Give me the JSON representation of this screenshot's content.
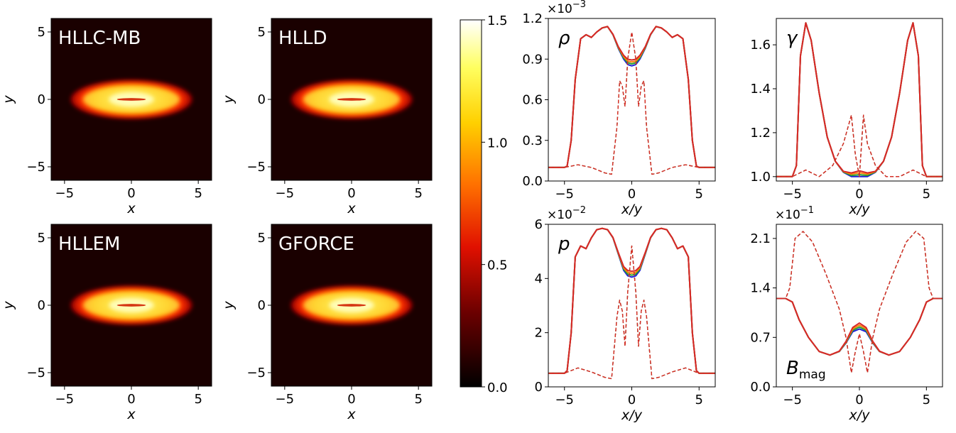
{
  "heatmaps": [
    {
      "title": "HLLC-MB"
    },
    {
      "title": "HLLD"
    },
    {
      "title": "HLLEM"
    },
    {
      "title": "GFORCE"
    }
  ],
  "heatmap_axes": {
    "xlabel": "x",
    "ylabel": "y",
    "xticks": [
      "−5",
      "0",
      "5"
    ],
    "yticks": [
      "5",
      "0",
      "−5"
    ]
  },
  "colorbar": {
    "ticks": [
      "1.5",
      "1.0",
      "0.5",
      "0.0"
    ],
    "range": [
      0,
      1.5
    ],
    "colormap": "hot"
  },
  "profiles": [
    {
      "label": "ρ",
      "sub": "",
      "multiplier": "×10",
      "exp": "−3",
      "xlabel": "x/y",
      "yticks": [
        "1.2",
        "0.9",
        "0.6",
        "0.3",
        "0.0"
      ],
      "xticks": [
        "−5",
        "0",
        "5"
      ]
    },
    {
      "label": "γ",
      "sub": "",
      "multiplier": "",
      "exp": "",
      "xlabel": "x/y",
      "yticks": [
        "1.6",
        "1.4",
        "1.2",
        "1.0"
      ],
      "xticks": [
        "−5",
        "0",
        "5"
      ]
    },
    {
      "label": "p",
      "sub": "",
      "multiplier": "×10",
      "exp": "−2",
      "xlabel": "x/y",
      "yticks": [
        "6",
        "4",
        "2",
        "0"
      ],
      "xticks": [
        "−5",
        "0",
        "5"
      ]
    },
    {
      "label": "B",
      "sub": "mag",
      "multiplier": "×10",
      "exp": "−1",
      "xlabel": "x/y",
      "yticks": [
        "2.1",
        "1.4",
        "0.7",
        "0.0"
      ],
      "xticks": [
        "−5",
        "0",
        "5"
      ]
    }
  ],
  "colors": {
    "series_1": "#1f1fd6",
    "series_2": "#2ca02c",
    "series_3": "#ff7f0e",
    "series_4": "#d62728"
  },
  "chart_data": [
    {
      "type": "heatmap",
      "title": "HLLC-MB",
      "xlim": [
        -6,
        6
      ],
      "ylim": [
        -6,
        6
      ],
      "zlim": [
        0,
        1.5
      ]
    },
    {
      "type": "heatmap",
      "title": "HLLD",
      "xlim": [
        -6,
        6
      ],
      "ylim": [
        -6,
        6
      ],
      "zlim": [
        0,
        1.5
      ]
    },
    {
      "type": "heatmap",
      "title": "HLLEM",
      "xlim": [
        -6,
        6
      ],
      "ylim": [
        -6,
        6
      ],
      "zlim": [
        0,
        1.5
      ]
    },
    {
      "type": "heatmap",
      "title": "GFORCE",
      "xlim": [
        -6,
        6
      ],
      "ylim": [
        -6,
        6
      ],
      "zlim": [
        0,
        1.5
      ]
    },
    {
      "type": "line",
      "ylabel": "ρ",
      "xlabel": "x/y",
      "xlim": [
        -6.2,
        6.2
      ],
      "ylim": [
        0,
        1.2
      ],
      "scale": "×10^-3",
      "series": [
        {
          "style": "solid",
          "x": [
            -6.2,
            -5.0,
            -4.8,
            -4.5,
            -4.2,
            -3.8,
            -3.4,
            -3.0,
            -2.6,
            -2.2,
            -1.8,
            -1.4,
            -1.0,
            -0.6,
            -0.3,
            0,
            0.3,
            0.6,
            1.0,
            1.4,
            1.8,
            2.2,
            2.6,
            3.0,
            3.4,
            3.8,
            4.2,
            4.5,
            4.8,
            5.0,
            6.2
          ],
          "y": [
            0.1,
            0.1,
            0.11,
            0.3,
            0.75,
            1.05,
            1.08,
            1.06,
            1.1,
            1.13,
            1.14,
            1.08,
            0.98,
            0.9,
            0.86,
            0.85,
            0.86,
            0.9,
            0.98,
            1.08,
            1.14,
            1.13,
            1.1,
            1.06,
            1.08,
            1.05,
            0.75,
            0.3,
            0.11,
            0.1,
            0.1
          ]
        },
        {
          "style": "dashed",
          "x": [
            -6.2,
            -5.0,
            -4.0,
            -3.0,
            -2.0,
            -1.5,
            -1.1,
            -0.9,
            -0.7,
            -0.5,
            -0.3,
            0,
            0.3,
            0.5,
            0.7,
            0.9,
            1.1,
            1.5,
            2.0,
            3.0,
            4.0,
            5.0,
            6.2
          ],
          "y": [
            0.1,
            0.1,
            0.12,
            0.1,
            0.06,
            0.05,
            0.4,
            0.74,
            0.7,
            0.55,
            0.9,
            1.1,
            0.9,
            0.55,
            0.7,
            0.74,
            0.4,
            0.05,
            0.06,
            0.1,
            0.12,
            0.1,
            0.1
          ]
        }
      ]
    },
    {
      "type": "line",
      "ylabel": "γ",
      "xlabel": "x/y",
      "xlim": [
        -6.2,
        6.2
      ],
      "ylim": [
        0.98,
        1.72
      ],
      "series": [
        {
          "style": "solid",
          "x": [
            -6.2,
            -5.0,
            -4.7,
            -4.4,
            -4.0,
            -3.6,
            -3.0,
            -2.4,
            -1.8,
            -1.2,
            -0.6,
            0,
            0.6,
            1.2,
            1.8,
            2.4,
            3.0,
            3.6,
            4.0,
            4.4,
            4.7,
            5.0,
            6.2
          ],
          "y": [
            1.0,
            1.0,
            1.05,
            1.55,
            1.7,
            1.62,
            1.38,
            1.18,
            1.07,
            1.02,
            1.0,
            1.0,
            1.0,
            1.02,
            1.07,
            1.18,
            1.38,
            1.62,
            1.7,
            1.55,
            1.05,
            1.0,
            1.0
          ]
        },
        {
          "style": "dashed",
          "x": [
            -6.2,
            -5.0,
            -4.0,
            -3.0,
            -2.0,
            -1.2,
            -0.6,
            -0.3,
            0,
            0.3,
            0.6,
            1.2,
            2.0,
            3.0,
            4.0,
            5.0,
            6.2
          ],
          "y": [
            1.0,
            1.0,
            1.03,
            1.0,
            1.05,
            1.15,
            1.28,
            1.1,
            1.0,
            1.28,
            1.15,
            1.05,
            1.0,
            1.0,
            1.03,
            1.0,
            1.0
          ]
        }
      ]
    },
    {
      "type": "line",
      "ylabel": "p",
      "xlabel": "x/y",
      "xlim": [
        -6.2,
        6.2
      ],
      "ylim": [
        0,
        6
      ],
      "scale": "×10^-2",
      "series": [
        {
          "style": "solid",
          "x": [
            -6.2,
            -5.0,
            -4.8,
            -4.5,
            -4.2,
            -3.8,
            -3.4,
            -3.0,
            -2.6,
            -2.2,
            -1.8,
            -1.4,
            -1.0,
            -0.6,
            -0.3,
            0,
            0.3,
            0.6,
            1.0,
            1.4,
            1.8,
            2.2,
            2.6,
            3.0,
            3.4,
            3.8,
            4.2,
            4.5,
            4.8,
            5.0,
            6.2
          ],
          "y": [
            0.5,
            0.5,
            0.6,
            2.0,
            4.8,
            5.2,
            5.1,
            5.5,
            5.8,
            5.85,
            5.8,
            5.5,
            4.9,
            4.3,
            4.1,
            4.05,
            4.1,
            4.3,
            4.9,
            5.5,
            5.8,
            5.85,
            5.8,
            5.5,
            5.1,
            5.2,
            4.8,
            2.0,
            0.6,
            0.5,
            0.5
          ]
        },
        {
          "style": "dashed",
          "x": [
            -6.2,
            -5.0,
            -4.0,
            -3.0,
            -2.0,
            -1.5,
            -1.1,
            -0.9,
            -0.7,
            -0.5,
            -0.3,
            0,
            0.3,
            0.5,
            0.7,
            0.9,
            1.1,
            1.5,
            2.0,
            3.0,
            4.0,
            5.0,
            6.2
          ],
          "y": [
            0.5,
            0.5,
            0.7,
            0.55,
            0.35,
            0.3,
            2.6,
            3.2,
            2.8,
            1.5,
            3.5,
            5.2,
            3.5,
            1.5,
            2.8,
            3.2,
            2.6,
            0.3,
            0.35,
            0.55,
            0.7,
            0.5,
            0.5
          ]
        }
      ]
    },
    {
      "type": "line",
      "ylabel": "B_mag",
      "xlabel": "x/y",
      "xlim": [
        -6.2,
        6.2
      ],
      "ylim": [
        0,
        2.3
      ],
      "scale": "×10^-1",
      "series": [
        {
          "style": "solid",
          "x": [
            -6.2,
            -5.5,
            -5.0,
            -4.5,
            -3.8,
            -3.0,
            -2.2,
            -1.5,
            -1.0,
            -0.5,
            0,
            0.5,
            1.0,
            1.5,
            2.2,
            3.0,
            3.8,
            4.5,
            5.0,
            5.5,
            6.2
          ],
          "y": [
            1.25,
            1.25,
            1.2,
            0.95,
            0.7,
            0.5,
            0.45,
            0.5,
            0.62,
            0.78,
            0.82,
            0.78,
            0.62,
            0.5,
            0.45,
            0.5,
            0.7,
            0.95,
            1.2,
            1.25,
            1.25
          ]
        },
        {
          "style": "dashed",
          "x": [
            -6.2,
            -5.5,
            -5.2,
            -4.8,
            -4.2,
            -3.5,
            -2.5,
            -1.5,
            -1.0,
            -0.6,
            -0.3,
            0,
            0.3,
            0.6,
            1.0,
            1.5,
            2.5,
            3.5,
            4.2,
            4.8,
            5.2,
            5.5,
            6.2
          ],
          "y": [
            1.25,
            1.25,
            1.4,
            2.1,
            2.2,
            2.05,
            1.6,
            1.1,
            0.7,
            0.2,
            0.5,
            0.75,
            0.5,
            0.2,
            0.7,
            1.1,
            1.6,
            2.05,
            2.2,
            2.1,
            1.4,
            1.25,
            1.25
          ]
        }
      ]
    }
  ]
}
